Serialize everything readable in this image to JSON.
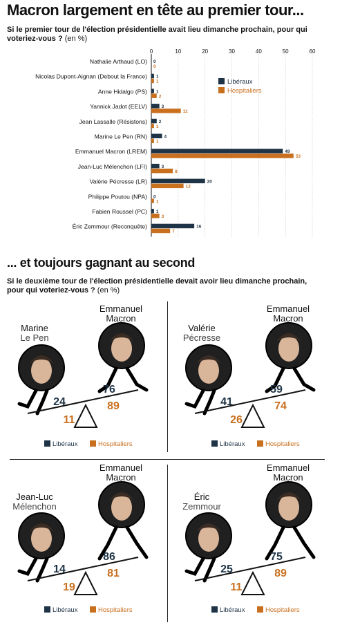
{
  "title1": "Macron largement en tête au premier tour...",
  "question1": "Si le premier  tour de l'élection présidentielle avait lieu dimanche prochain, pour qui voteriez-vous ?",
  "unit": "(en %)",
  "colors": {
    "liberaux": "#1e3346",
    "hospitaliers": "#c9701f",
    "ink": "#111111",
    "skin": "#d9b59a",
    "bg_dark": "#202020"
  },
  "legend": {
    "liberaux": "Libéraux",
    "hospitaliers": "Hospitaliers"
  },
  "chart_data": {
    "type": "bar",
    "orientation": "horizontal",
    "xlim": [
      0,
      60
    ],
    "ticks": [
      0,
      10,
      20,
      30,
      40,
      50,
      60
    ],
    "categories": [
      "Nathalie Arthaud (LO)",
      "Nicolas Dupont-Aignan (Debout la France)",
      "Anne Hidalgo (PS)",
      "Yannick Jadot (EELV)",
      "Jean Lassalle (Résistons)",
      "Marine Le Pen (RN)",
      "Emmanuel Macron (LREM)",
      "Jean-Luc Mélenchon (LFI)",
      "Valérie Pécresse (LR)",
      "Philippe Poutou (NPA)",
      "Fabien Roussel (PC)",
      "Éric Zemmour (Reconquête)"
    ],
    "series": [
      {
        "name": "Libéraux",
        "values": [
          0,
          1,
          1,
          3,
          2,
          4,
          49,
          3,
          20,
          0,
          1,
          16
        ]
      },
      {
        "name": "Hospitaliers",
        "values": [
          0,
          1,
          2,
          11,
          1,
          1,
          53,
          8,
          12,
          1,
          3,
          7
        ]
      }
    ],
    "legend_position": "right"
  },
  "title2": "... et toujours gagnant au second",
  "question2": "Si le deuxième tour de l'élection présidentielle devait avoir lieu dimanche prochain, pour qui voteriez-vous ?",
  "second_round": [
    {
      "left_first": "Marine",
      "left_last": "Le Pen",
      "right_first": "Emmanuel",
      "right_last": "Macron",
      "lib_left": 24,
      "lib_right": 76,
      "hosp_left": 11,
      "hosp_right": 89
    },
    {
      "left_first": "Valérie",
      "left_last": "Pécresse",
      "right_first": "Emmanuel",
      "right_last": "Macron",
      "lib_left": 41,
      "lib_right": 59,
      "hosp_left": 26,
      "hosp_right": 74
    },
    {
      "left_first": "Jean-Luc",
      "left_last": "Mélenchon",
      "right_first": "Emmanuel",
      "right_last": "Macron",
      "lib_left": 14,
      "lib_right": 86,
      "hosp_left": 19,
      "hosp_right": 81
    },
    {
      "left_first": "Éric",
      "left_last": "Zemmour",
      "right_first": "Emmanuel",
      "right_last": "Macron",
      "lib_left": 25,
      "lib_right": 75,
      "hosp_left": 11,
      "hosp_right": 89
    }
  ]
}
